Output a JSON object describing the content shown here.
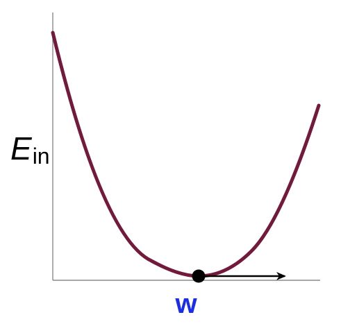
{
  "y_axis_label": {
    "main": "E",
    "subscript": "in"
  },
  "x_axis_label": "w",
  "colors": {
    "curve": "#731a3c",
    "axes": "#8a8a8a",
    "point": "#000000",
    "arrow": "#000000",
    "x_label": "#1a2cf0",
    "y_label": "#000000"
  }
}
